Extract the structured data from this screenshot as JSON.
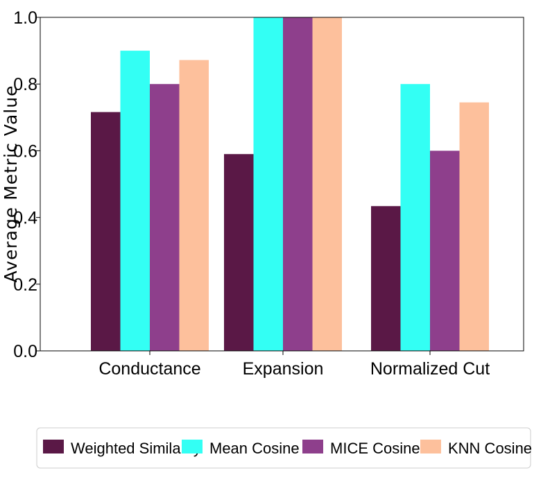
{
  "chart_data": {
    "type": "bar",
    "title": "",
    "xlabel": "",
    "ylabel": "Average Metric Value",
    "categories": [
      "Conductance",
      "Expansion",
      "Normalized Cut"
    ],
    "series": [
      {
        "name": "Weighted Similarity",
        "color": "#5a1846",
        "values": [
          0.716,
          0.59,
          0.434
        ]
      },
      {
        "name": "Mean Cosine",
        "color": "#33fff4",
        "values": [
          0.9,
          1.0,
          0.8
        ]
      },
      {
        "name": "MICE Cosine",
        "color": "#8e3f8c",
        "values": [
          0.8,
          1.0,
          0.6
        ]
      },
      {
        "name": "KNN Cosine",
        "color": "#fdc09c",
        "values": [
          0.872,
          1.0,
          0.745
        ]
      }
    ],
    "ylim": [
      0,
      1.0
    ],
    "yticks": [
      "0.0",
      "0.2",
      "0.4",
      "0.6",
      "0.8",
      "1.0"
    ],
    "grid": false,
    "legend_position": "bottom"
  }
}
